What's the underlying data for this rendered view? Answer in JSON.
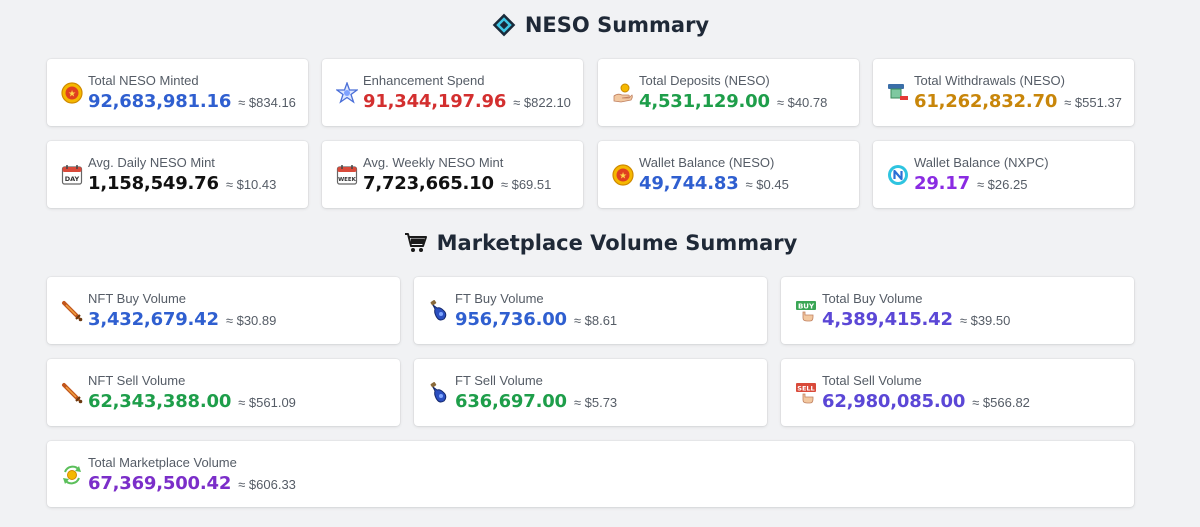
{
  "neso_summary": {
    "title": "NESO Summary",
    "cards": [
      {
        "label": "Total NESO Minted",
        "value": "92,683,981.16",
        "usd": "≈ $834.16",
        "icon": "neso-coin-icon",
        "color": "#2f5fd0"
      },
      {
        "label": "Enhancement Spend",
        "value": "91,344,197.96",
        "usd": "≈ $822.10",
        "icon": "enhancement-star-icon",
        "color": "#d32f2f"
      },
      {
        "label": "Total Deposits (NESO)",
        "value": "4,531,129.00",
        "usd": "≈ $40.78",
        "icon": "deposit-hand-icon",
        "color": "#1e9e4a"
      },
      {
        "label": "Total Withdrawals (NESO)",
        "value": "61,262,832.70",
        "usd": "≈ $551.37",
        "icon": "withdraw-machine-icon",
        "color": "#c8860a"
      },
      {
        "label": "Avg. Daily NESO Mint",
        "value": "1,158,549.76",
        "usd": "≈ $10.43",
        "icon": "calendar-day-icon",
        "color": "#111111"
      },
      {
        "label": "Avg. Weekly NESO Mint",
        "value": "7,723,665.10",
        "usd": "≈ $69.51",
        "icon": "calendar-week-icon",
        "color": "#111111"
      },
      {
        "label": "Wallet Balance (NESO)",
        "value": "49,744.83",
        "usd": "≈ $0.45",
        "icon": "neso-coin-icon",
        "color": "#2f5fd0"
      },
      {
        "label": "Wallet Balance (NXPC)",
        "value": "29.17",
        "usd": "≈ $26.25",
        "icon": "nxpc-coin-icon",
        "color": "#8a2be2"
      }
    ]
  },
  "marketplace_summary": {
    "title": "Marketplace Volume Summary",
    "cards": [
      {
        "label": "NFT Buy Volume",
        "value": "3,432,679.42",
        "usd": "≈ $30.89",
        "icon": "sword-icon",
        "color": "#2f5fd0"
      },
      {
        "label": "FT Buy Volume",
        "value": "956,736.00",
        "usd": "≈ $8.61",
        "icon": "potion-icon",
        "color": "#2f5fd0"
      },
      {
        "label": "Total Buy Volume",
        "value": "4,389,415.42",
        "usd": "≈ $39.50",
        "icon": "buy-sign-icon",
        "color": "#5b47d6"
      },
      {
        "label": "NFT Sell Volume",
        "value": "62,343,388.00",
        "usd": "≈ $561.09",
        "icon": "sword-icon",
        "color": "#1e9e4a"
      },
      {
        "label": "FT Sell Volume",
        "value": "636,697.00",
        "usd": "≈ $5.73",
        "icon": "potion-icon",
        "color": "#1e9e4a"
      },
      {
        "label": "Total Sell Volume",
        "value": "62,980,085.00",
        "usd": "≈ $566.82",
        "icon": "sell-sign-icon",
        "color": "#5b47d6"
      },
      {
        "label": "Total Marketplace Volume",
        "value": "67,369,500.42",
        "usd": "≈ $606.33",
        "icon": "exchange-coin-icon",
        "color": "#7b2ec9"
      }
    ]
  }
}
